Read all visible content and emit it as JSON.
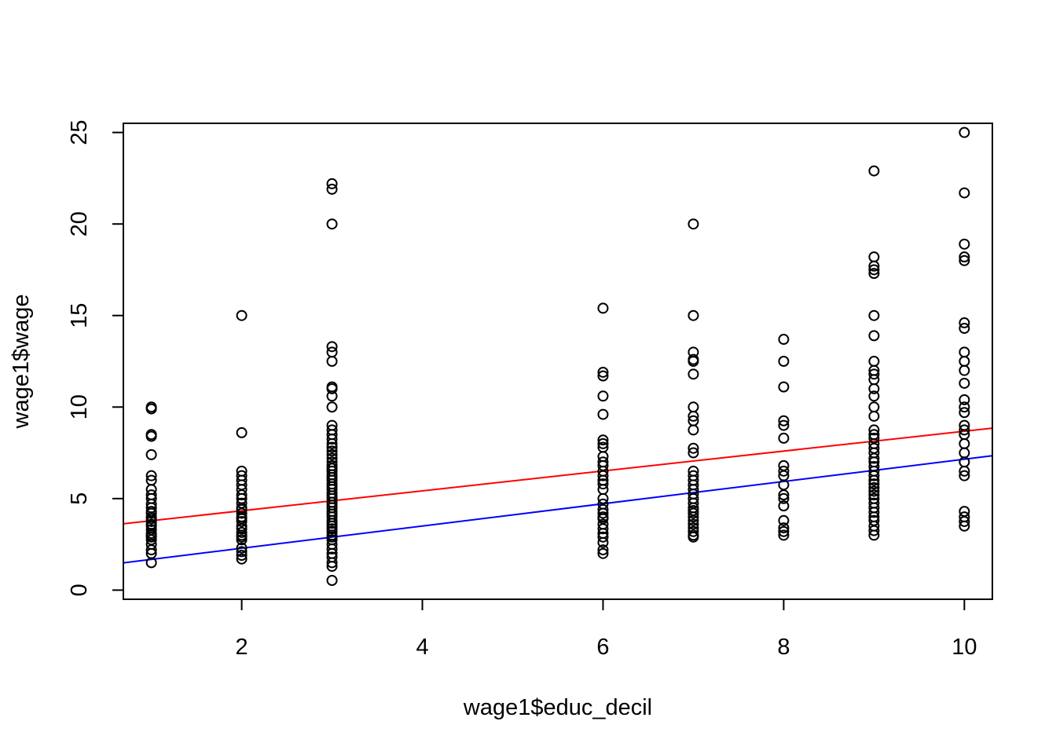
{
  "chart_data": {
    "type": "scatter",
    "title": "",
    "xlabel": "wage1$educ_decil",
    "ylabel": "wage1$wage",
    "xlim": [
      0.69,
      10.31
    ],
    "ylim": [
      -0.5,
      25.5
    ],
    "xticks": [
      2,
      4,
      6,
      8,
      10
    ],
    "xtick_labels": [
      "2",
      "4",
      "6",
      "8",
      "10"
    ],
    "yticks": [
      0,
      5,
      10,
      15,
      20,
      25
    ],
    "ytick_labels": [
      "0",
      "5",
      "10",
      "15",
      "20",
      "25"
    ],
    "grid": false,
    "legend": "none",
    "series": [
      {
        "marker": "open-circle",
        "color": "#000000",
        "points": [
          [
            1,
            1.5
          ],
          [
            1,
            2.0
          ],
          [
            1,
            2.2
          ],
          [
            1,
            2.5
          ],
          [
            1,
            2.75
          ],
          [
            1,
            2.9
          ],
          [
            1,
            3.0
          ],
          [
            1,
            3.1
          ],
          [
            1,
            3.3
          ],
          [
            1,
            3.5
          ],
          [
            1,
            3.6
          ],
          [
            1,
            3.75
          ],
          [
            1,
            3.9
          ],
          [
            1,
            4.0
          ],
          [
            1,
            4.2
          ],
          [
            1,
            4.3
          ],
          [
            1,
            4.5
          ],
          [
            1,
            4.7
          ],
          [
            1,
            5.0
          ],
          [
            1,
            5.2
          ],
          [
            1,
            5.5
          ],
          [
            1,
            6.0
          ],
          [
            1,
            6.25
          ],
          [
            1,
            7.4
          ],
          [
            1,
            8.4
          ],
          [
            1,
            8.5
          ],
          [
            1,
            9.9
          ],
          [
            1,
            10.0
          ],
          [
            2,
            1.7
          ],
          [
            2,
            1.9
          ],
          [
            2,
            2.1
          ],
          [
            2,
            2.3
          ],
          [
            2,
            2.75
          ],
          [
            2,
            2.9
          ],
          [
            2,
            3.0
          ],
          [
            2,
            3.15
          ],
          [
            2,
            3.35
          ],
          [
            2,
            3.5
          ],
          [
            2,
            3.75
          ],
          [
            2,
            3.9
          ],
          [
            2,
            4.0
          ],
          [
            2,
            4.2
          ],
          [
            2,
            4.4
          ],
          [
            2,
            4.5
          ],
          [
            2,
            4.75
          ],
          [
            2,
            5.0
          ],
          [
            2,
            5.2
          ],
          [
            2,
            5.5
          ],
          [
            2,
            5.75
          ],
          [
            2,
            6.0
          ],
          [
            2,
            6.25
          ],
          [
            2,
            6.5
          ],
          [
            2,
            8.6
          ],
          [
            2,
            15.0
          ],
          [
            3,
            0.53
          ],
          [
            3,
            1.3
          ],
          [
            3,
            1.5
          ],
          [
            3,
            1.8
          ],
          [
            3,
            2.0
          ],
          [
            3,
            2.25
          ],
          [
            3,
            2.5
          ],
          [
            3,
            2.75
          ],
          [
            3,
            2.9
          ],
          [
            3,
            3.0
          ],
          [
            3,
            3.2
          ],
          [
            3,
            3.35
          ],
          [
            3,
            3.5
          ],
          [
            3,
            3.65
          ],
          [
            3,
            3.8
          ],
          [
            3,
            4.0
          ],
          [
            3,
            4.15
          ],
          [
            3,
            4.3
          ],
          [
            3,
            4.5
          ],
          [
            3,
            4.65
          ],
          [
            3,
            4.8
          ],
          [
            3,
            5.0
          ],
          [
            3,
            5.15
          ],
          [
            3,
            5.3
          ],
          [
            3,
            5.5
          ],
          [
            3,
            5.65
          ],
          [
            3,
            5.8
          ],
          [
            3,
            6.0
          ],
          [
            3,
            6.15
          ],
          [
            3,
            6.3
          ],
          [
            3,
            6.5
          ],
          [
            3,
            6.65
          ],
          [
            3,
            6.8
          ],
          [
            3,
            7.0
          ],
          [
            3,
            7.2
          ],
          [
            3,
            7.4
          ],
          [
            3,
            7.6
          ],
          [
            3,
            7.8
          ],
          [
            3,
            8.0
          ],
          [
            3,
            8.25
          ],
          [
            3,
            8.5
          ],
          [
            3,
            8.75
          ],
          [
            3,
            9.0
          ],
          [
            3,
            10.0
          ],
          [
            3,
            10.6
          ],
          [
            3,
            11.0
          ],
          [
            3,
            11.1
          ],
          [
            3,
            12.5
          ],
          [
            3,
            13.0
          ],
          [
            3,
            13.3
          ],
          [
            3,
            20.0
          ],
          [
            3,
            21.9
          ],
          [
            3,
            22.2
          ],
          [
            6,
            2.0
          ],
          [
            6,
            2.2
          ],
          [
            6,
            2.6
          ],
          [
            6,
            2.9
          ],
          [
            6,
            3.1
          ],
          [
            6,
            3.35
          ],
          [
            6,
            3.6
          ],
          [
            6,
            3.9
          ],
          [
            6,
            4.0
          ],
          [
            6,
            4.2
          ],
          [
            6,
            4.4
          ],
          [
            6,
            4.7
          ],
          [
            6,
            5.0
          ],
          [
            6,
            5.5
          ],
          [
            6,
            5.8
          ],
          [
            6,
            6.0
          ],
          [
            6,
            6.25
          ],
          [
            6,
            6.5
          ],
          [
            6,
            6.8
          ],
          [
            6,
            7.0
          ],
          [
            6,
            7.3
          ],
          [
            6,
            7.8
          ],
          [
            6,
            8.0
          ],
          [
            6,
            8.2
          ],
          [
            6,
            9.6
          ],
          [
            6,
            10.6
          ],
          [
            6,
            11.7
          ],
          [
            6,
            11.9
          ],
          [
            6,
            15.4
          ],
          [
            7,
            2.9
          ],
          [
            7,
            3.0
          ],
          [
            7,
            3.2
          ],
          [
            7,
            3.4
          ],
          [
            7,
            3.6
          ],
          [
            7,
            3.8
          ],
          [
            7,
            4.0
          ],
          [
            7,
            4.2
          ],
          [
            7,
            4.35
          ],
          [
            7,
            4.5
          ],
          [
            7,
            4.75
          ],
          [
            7,
            5.0
          ],
          [
            7,
            5.25
          ],
          [
            7,
            5.5
          ],
          [
            7,
            5.75
          ],
          [
            7,
            6.0
          ],
          [
            7,
            6.25
          ],
          [
            7,
            6.5
          ],
          [
            7,
            7.5
          ],
          [
            7,
            7.75
          ],
          [
            7,
            8.75
          ],
          [
            7,
            9.25
          ],
          [
            7,
            9.5
          ],
          [
            7,
            10.0
          ],
          [
            7,
            11.8
          ],
          [
            7,
            12.5
          ],
          [
            7,
            12.6
          ],
          [
            7,
            13.0
          ],
          [
            7,
            15.0
          ],
          [
            7,
            20.0
          ],
          [
            8,
            3.0
          ],
          [
            8,
            3.2
          ],
          [
            8,
            3.4
          ],
          [
            8,
            3.8
          ],
          [
            8,
            4.6
          ],
          [
            8,
            5.0
          ],
          [
            8,
            5.2
          ],
          [
            8,
            5.75
          ],
          [
            8,
            6.25
          ],
          [
            8,
            6.5
          ],
          [
            8,
            6.8
          ],
          [
            8,
            8.3
          ],
          [
            8,
            9.0
          ],
          [
            8,
            9.25
          ],
          [
            8,
            11.1
          ],
          [
            8,
            12.5
          ],
          [
            8,
            13.7
          ],
          [
            9,
            3.0
          ],
          [
            9,
            3.25
          ],
          [
            9,
            3.5
          ],
          [
            9,
            3.8
          ],
          [
            9,
            4.0
          ],
          [
            9,
            4.25
          ],
          [
            9,
            4.5
          ],
          [
            9,
            4.75
          ],
          [
            9,
            5.0
          ],
          [
            9,
            5.2
          ],
          [
            9,
            5.4
          ],
          [
            9,
            5.6
          ],
          [
            9,
            5.8
          ],
          [
            9,
            6.0
          ],
          [
            9,
            6.25
          ],
          [
            9,
            6.5
          ],
          [
            9,
            6.75
          ],
          [
            9,
            7.0
          ],
          [
            9,
            7.2
          ],
          [
            9,
            7.5
          ],
          [
            9,
            7.75
          ],
          [
            9,
            8.0
          ],
          [
            9,
            8.3
          ],
          [
            9,
            8.5
          ],
          [
            9,
            8.75
          ],
          [
            9,
            9.5
          ],
          [
            9,
            10.0
          ],
          [
            9,
            10.6
          ],
          [
            9,
            11.0
          ],
          [
            9,
            11.5
          ],
          [
            9,
            11.8
          ],
          [
            9,
            12.0
          ],
          [
            9,
            12.5
          ],
          [
            9,
            13.9
          ],
          [
            9,
            15.0
          ],
          [
            9,
            17.3
          ],
          [
            9,
            17.5
          ],
          [
            9,
            17.7
          ],
          [
            9,
            18.2
          ],
          [
            9,
            22.9
          ],
          [
            10,
            3.5
          ],
          [
            10,
            3.75
          ],
          [
            10,
            4.0
          ],
          [
            10,
            4.3
          ],
          [
            10,
            6.25
          ],
          [
            10,
            6.5
          ],
          [
            10,
            7.0
          ],
          [
            10,
            7.5
          ],
          [
            10,
            8.0
          ],
          [
            10,
            8.5
          ],
          [
            10,
            8.75
          ],
          [
            10,
            9.0
          ],
          [
            10,
            9.7
          ],
          [
            10,
            10.0
          ],
          [
            10,
            10.4
          ],
          [
            10,
            11.3
          ],
          [
            10,
            12.0
          ],
          [
            10,
            12.5
          ],
          [
            10,
            13.0
          ],
          [
            10,
            14.3
          ],
          [
            10,
            14.6
          ],
          [
            10,
            18.0
          ],
          [
            10,
            18.2
          ],
          [
            10,
            18.9
          ],
          [
            10,
            21.7
          ],
          [
            10,
            25.0
          ]
        ]
      }
    ],
    "lines": [
      {
        "color": "#ff0000",
        "intercept": 3.25,
        "slope": 0.543
      },
      {
        "color": "#0000ff",
        "intercept": 1.07,
        "slope": 0.608
      }
    ]
  }
}
